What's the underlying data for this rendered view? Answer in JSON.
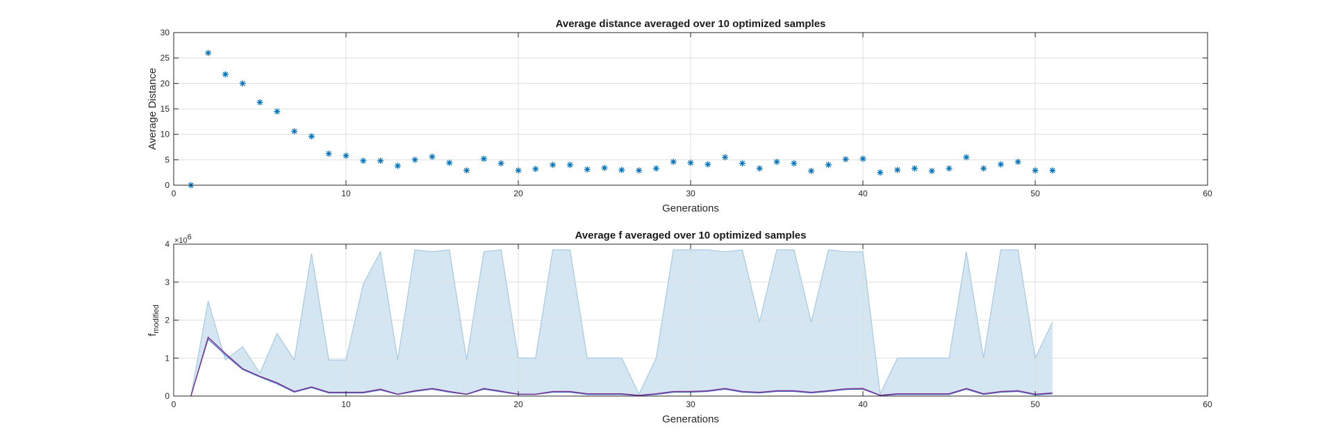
{
  "chart_data": [
    {
      "type": "scatter",
      "title": "Average distance averaged over 10 optimized samples",
      "xlabel": "Generations",
      "ylabel": "Average Distance",
      "xlim": [
        0,
        60
      ],
      "ylim": [
        0,
        30
      ],
      "xticks": [
        "0",
        "10",
        "20",
        "30",
        "40",
        "50",
        "60"
      ],
      "yticks": [
        "0",
        "5",
        "10",
        "15",
        "20",
        "25",
        "30"
      ],
      "grid": true,
      "marker": "asterisk",
      "color": "#0072BD",
      "x": [
        1,
        2,
        3,
        4,
        5,
        6,
        7,
        8,
        9,
        10,
        11,
        12,
        13,
        14,
        15,
        16,
        17,
        18,
        19,
        20,
        21,
        22,
        23,
        24,
        25,
        26,
        27,
        28,
        29,
        30,
        31,
        32,
        33,
        34,
        35,
        36,
        37,
        38,
        39,
        40,
        41,
        42,
        43,
        44,
        45,
        46,
        47,
        48,
        49,
        50,
        51
      ],
      "y": [
        0,
        26,
        21.8,
        20,
        16.3,
        14.5,
        10.6,
        9.6,
        6.2,
        5.8,
        4.8,
        4.8,
        3.8,
        5,
        5.6,
        4.4,
        2.9,
        5.2,
        4.3,
        2.9,
        3.2,
        4,
        4,
        3.1,
        3.4,
        3,
        2.9,
        3.3,
        4.6,
        4.4,
        4.1,
        5.5,
        4.3,
        3.3,
        4.6,
        4.3,
        2.8,
        4,
        5.1,
        5.2,
        2.5,
        3,
        3.3,
        2.8,
        3.3,
        5.5,
        3.3,
        4.1,
        4.6,
        2.9,
        2.9
      ]
    },
    {
      "type": "area",
      "title": "Average f averaged over 10 optimized samples",
      "xlabel": "Generations",
      "ylabel_main": "f",
      "ylabel_sub": "modified",
      "y_exponent_base": "×10",
      "y_exponent": "6",
      "xlim": [
        0,
        60
      ],
      "ylim": [
        0,
        4
      ],
      "xticks": [
        "0",
        "10",
        "20",
        "30",
        "40",
        "50",
        "60"
      ],
      "yticks": [
        "0",
        "1",
        "2",
        "3",
        "4"
      ],
      "grid": true,
      "x": [
        1,
        2,
        3,
        4,
        5,
        6,
        7,
        8,
        9,
        10,
        11,
        12,
        13,
        14,
        15,
        16,
        17,
        18,
        19,
        20,
        21,
        22,
        23,
        24,
        25,
        26,
        27,
        28,
        29,
        30,
        31,
        32,
        33,
        34,
        35,
        36,
        37,
        38,
        39,
        40,
        41,
        42,
        43,
        44,
        45,
        46,
        47,
        48,
        49,
        50,
        51
      ],
      "series": [
        {
          "role": "band-upper",
          "color": "#A6C8E3",
          "fill": "#D5E6F3",
          "values": [
            0,
            2.5,
            0.95,
            1.3,
            0.6,
            1.65,
            0.95,
            3.75,
            0.95,
            0.95,
            2.95,
            3.8,
            0.95,
            3.85,
            3.8,
            3.85,
            0.95,
            3.8,
            3.85,
            1,
            1,
            3.85,
            3.85,
            1,
            1,
            1,
            0.05,
            1,
            3.85,
            3.85,
            3.85,
            3.8,
            3.85,
            1.95,
            3.85,
            3.85,
            1.95,
            3.85,
            3.8,
            3.8,
            0.05,
            1,
            1,
            1,
            1,
            3.8,
            1,
            3.85,
            3.85,
            1,
            1.95
          ]
        },
        {
          "role": "mean",
          "color": "#7E2F8E",
          "values": [
            0,
            1.55,
            1.12,
            0.72,
            0.52,
            0.35,
            0.12,
            0.24,
            0.1,
            0.1,
            0.1,
            0.18,
            0.05,
            0.14,
            0.2,
            0.12,
            0.05,
            0.2,
            0.13,
            0.05,
            0.05,
            0.12,
            0.12,
            0.06,
            0.06,
            0.06,
            0.02,
            0.06,
            0.12,
            0.12,
            0.14,
            0.2,
            0.12,
            0.1,
            0.14,
            0.14,
            0.1,
            0.14,
            0.19,
            0.2,
            0.02,
            0.06,
            0.06,
            0.06,
            0.06,
            0.2,
            0.06,
            0.12,
            0.14,
            0.05,
            0.08
          ]
        },
        {
          "role": "band-lower",
          "color": "#4A7BD0",
          "values": [
            0,
            1.5,
            1.08,
            0.7,
            0.5,
            0.32,
            0.1,
            0.22,
            0.08,
            0.08,
            0.08,
            0.16,
            0.04,
            0.12,
            0.18,
            0.1,
            0.04,
            0.18,
            0.11,
            0.04,
            0.04,
            0.1,
            0.1,
            0.04,
            0.04,
            0.04,
            0.01,
            0.04,
            0.1,
            0.1,
            0.12,
            0.18,
            0.1,
            0.08,
            0.12,
            0.12,
            0.08,
            0.12,
            0.17,
            0.18,
            0.01,
            0.04,
            0.04,
            0.04,
            0.04,
            0.18,
            0.04,
            0.1,
            0.12,
            0.03,
            0.06
          ]
        }
      ]
    }
  ]
}
